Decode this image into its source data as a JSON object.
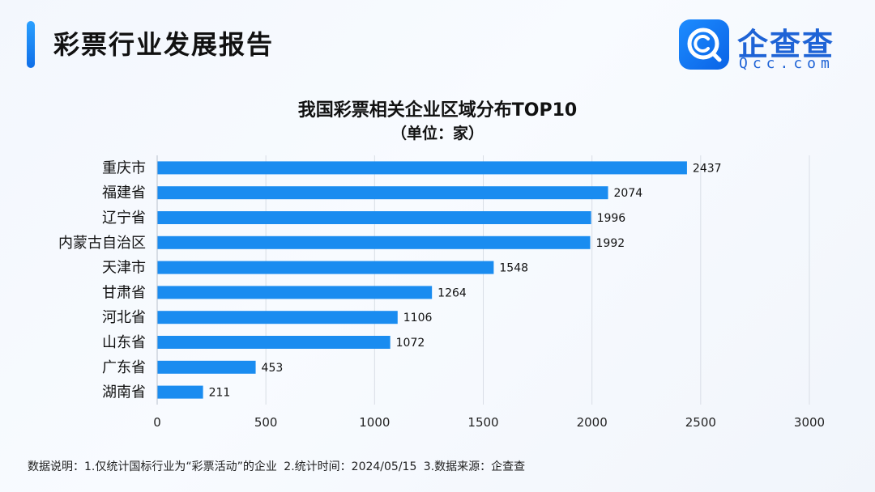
{
  "header": {
    "title": "彩票行业发展报告",
    "logo_name": "企查查",
    "logo_sub": "Qcc.com",
    "accent_color": "#1a8cff"
  },
  "chart_data": {
    "type": "bar",
    "orientation": "horizontal",
    "title": "我国彩票相关企业区域分布TOP10",
    "subtitle": "（单位：家）",
    "categories": [
      "重庆市",
      "福建省",
      "辽宁省",
      "内蒙古自治区",
      "天津市",
      "甘肃省",
      "河北省",
      "山东省",
      "广东省",
      "湖南省"
    ],
    "values": [
      2437,
      2074,
      1996,
      1992,
      1548,
      1264,
      1106,
      1072,
      453,
      211
    ],
    "xlim": [
      0,
      3000
    ],
    "xticks": [
      0,
      500,
      1000,
      1500,
      2000,
      2500,
      3000
    ],
    "grid": true,
    "data_labels": true,
    "bar_color": "#1a8cf0"
  },
  "footer": {
    "note": "数据说明：1.仅统计国标行业为“彩票活动”的企业  2.统计时间：2024/05/15  3.数据来源：企查查"
  }
}
